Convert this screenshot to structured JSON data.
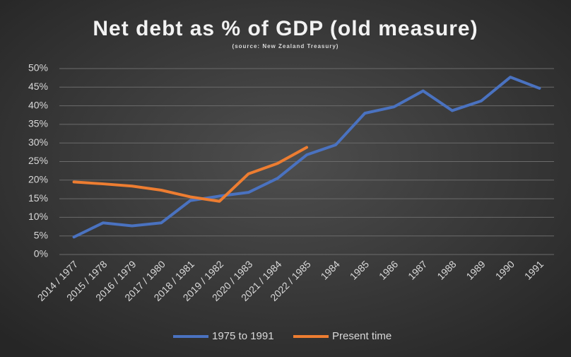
{
  "chart_data": {
    "type": "line",
    "title": "Net debt as % of GDP (old measure)",
    "subtitle": "(source: New Zealand Treasury)",
    "categories": [
      "2014 / 1977",
      "2015 / 1978",
      "2016 / 1979",
      "2017 / 1980",
      "2018 / 1981",
      "2019 / 1982",
      "2020 / 1983",
      "2021 / 1984",
      "2022 / 1985",
      "1984",
      "1985",
      "1986",
      "1987",
      "1988",
      "1989",
      "1990",
      "1991"
    ],
    "series": [
      {
        "name": "1975 to 1991",
        "color": "#4a72c0",
        "values": [
          4.7,
          8.5,
          7.7,
          8.5,
          14.5,
          15.7,
          16.7,
          20.5,
          26.8,
          29.5,
          38,
          39.7,
          44,
          38.7,
          41.3,
          47.7,
          44.7
        ]
      },
      {
        "name": "Present time",
        "color": "#ed7d31",
        "values": [
          19.5,
          19,
          18.4,
          17.3,
          15.5,
          14.3,
          21.7,
          24.5,
          28.8,
          null,
          null,
          null,
          null,
          null,
          null,
          null,
          null
        ]
      }
    ],
    "ylim": [
      0,
      50
    ],
    "yticks": [
      {
        "value": 0,
        "label": "0%"
      },
      {
        "value": 5,
        "label": "5%"
      },
      {
        "value": 10,
        "label": "10%"
      },
      {
        "value": 15,
        "label": "15%"
      },
      {
        "value": 20,
        "label": "20%"
      },
      {
        "value": 25,
        "label": "25%"
      },
      {
        "value": 30,
        "label": "30%"
      },
      {
        "value": 35,
        "label": "35%"
      },
      {
        "value": 40,
        "label": "40%"
      },
      {
        "value": 45,
        "label": "45%"
      },
      {
        "value": 50,
        "label": "50%"
      }
    ],
    "grid": true,
    "legend": "bottom"
  }
}
